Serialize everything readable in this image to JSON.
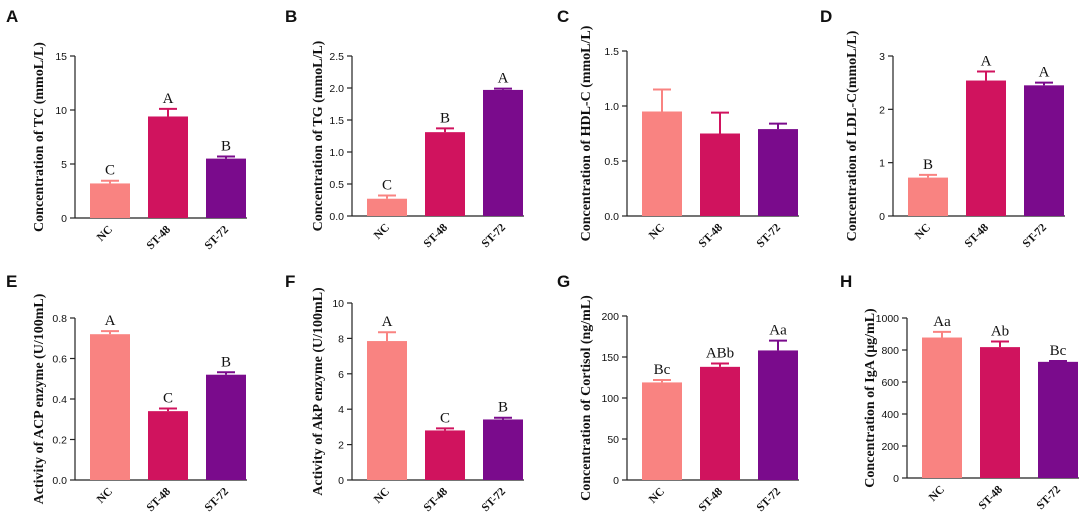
{
  "colors": {
    "NC": "#F98381",
    "ST-48": "#D0135E",
    "ST-72": "#7A0B8C"
  },
  "chart_data": [
    {
      "panel": "A",
      "type": "bar",
      "ylabel": "Concentration of TC (mmoL/L)",
      "categories": [
        "NC",
        "ST-48",
        "ST-72"
      ],
      "values": [
        3.2,
        9.4,
        5.5
      ],
      "errors": [
        0.25,
        0.7,
        0.2
      ],
      "labels": [
        "C",
        "A",
        "B"
      ],
      "ylim": [
        0,
        15
      ],
      "yticks": [
        0,
        5,
        10,
        15
      ],
      "ytick_labels": [
        "0",
        "5",
        "10",
        "15"
      ]
    },
    {
      "panel": "B",
      "type": "bar",
      "ylabel": "Concentration of TG (mmoL/L)",
      "categories": [
        "NC",
        "ST-48",
        "ST-72"
      ],
      "values": [
        0.27,
        1.31,
        1.97
      ],
      "errors": [
        0.05,
        0.06,
        0.02
      ],
      "labels": [
        "C",
        "B",
        "A"
      ],
      "ylim": [
        0,
        2.5
      ],
      "yticks": [
        0,
        0.5,
        1.0,
        1.5,
        2.0,
        2.5
      ],
      "ytick_labels": [
        "0.0",
        "0.5",
        "1.0",
        "1.5",
        "2.0",
        "2.5"
      ]
    },
    {
      "panel": "C",
      "type": "bar",
      "ylabel": "Concentration of HDL-C (mmoL/L)",
      "categories": [
        "NC",
        "ST-48",
        "ST-72"
      ],
      "values": [
        0.95,
        0.75,
        0.79
      ],
      "errors": [
        0.2,
        0.19,
        0.05
      ],
      "labels": [
        "",
        "",
        ""
      ],
      "ylim": [
        0,
        1.5
      ],
      "yticks": [
        0,
        0.5,
        1.0,
        1.5
      ],
      "ytick_labels": [
        "0.0",
        "0.5",
        "1.0",
        "1.5"
      ]
    },
    {
      "panel": "D",
      "type": "bar",
      "ylabel": "Concentration of LDL-C(mmoL/L)",
      "categories": [
        "NC",
        "ST-48",
        "ST-72"
      ],
      "values": [
        0.72,
        2.54,
        2.45
      ],
      "errors": [
        0.05,
        0.17,
        0.05
      ],
      "labels": [
        "B",
        "A",
        "A"
      ],
      "ylim": [
        0,
        3
      ],
      "yticks": [
        0,
        1,
        2,
        3
      ],
      "ytick_labels": [
        "0",
        "1",
        "2",
        "3"
      ]
    },
    {
      "panel": "E",
      "type": "bar",
      "ylabel": "Activity of ACP enzyme  (U/100mL)",
      "categories": [
        "NC",
        "ST-48",
        "ST-72"
      ],
      "values": [
        0.72,
        0.34,
        0.52
      ],
      "errors": [
        0.015,
        0.013,
        0.012
      ],
      "labels": [
        "A",
        "C",
        "B"
      ],
      "ylim": [
        0,
        0.8
      ],
      "yticks": [
        0,
        0.2,
        0.4,
        0.6,
        0.8
      ],
      "ytick_labels": [
        "0.0",
        "0.2",
        "0.4",
        "0.6",
        "0.8"
      ]
    },
    {
      "panel": "F",
      "type": "bar",
      "ylabel": "Activity of AkP enzyme (U/100mL)",
      "categories": [
        "NC",
        "ST-48",
        "ST-72"
      ],
      "values": [
        7.85,
        2.8,
        3.42
      ],
      "errors": [
        0.5,
        0.12,
        0.1
      ],
      "labels": [
        "A",
        "C",
        "B"
      ],
      "ylim": [
        0,
        10
      ],
      "yticks": [
        0,
        2,
        4,
        6,
        8,
        10
      ],
      "ytick_labels": [
        "0",
        "2",
        "4",
        "6",
        "8",
        "10"
      ]
    },
    {
      "panel": "G",
      "type": "bar",
      "ylabel": "Concentration of Cortisol (ng/mL)",
      "categories": [
        "NC",
        "ST-48",
        "ST-72"
      ],
      "values": [
        119,
        138,
        158
      ],
      "errors": [
        3,
        4,
        12
      ],
      "labels": [
        "Bc",
        "ABb",
        "Aa"
      ],
      "ylim": [
        0,
        200
      ],
      "yticks": [
        0,
        50,
        100,
        150,
        200
      ],
      "ytick_labels": [
        "0",
        "50",
        "100",
        "150",
        "200"
      ]
    },
    {
      "panel": "H",
      "type": "bar",
      "ylabel": "Concentration of IgA (μg/mL)",
      "categories": [
        "NC",
        "ST-48",
        "ST-72"
      ],
      "values": [
        878,
        818,
        726
      ],
      "errors": [
        35,
        35,
        5
      ],
      "labels": [
        "Aa",
        "Ab",
        "Bc"
      ],
      "ylim": [
        0,
        1000
      ],
      "yticks": [
        0,
        200,
        400,
        600,
        800,
        1000
      ],
      "ytick_labels": [
        "0",
        "200",
        "400",
        "600",
        "800",
        "1000"
      ]
    }
  ]
}
